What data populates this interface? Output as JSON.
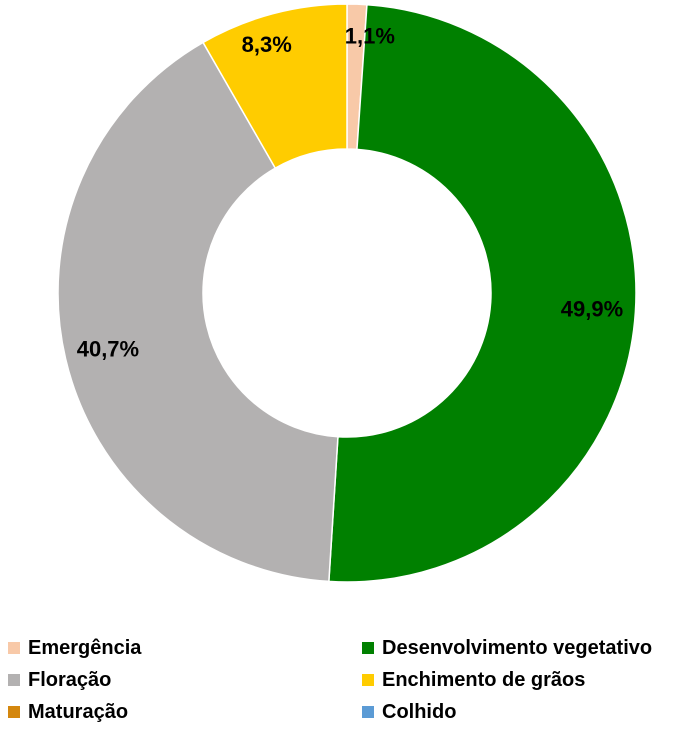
{
  "chart_data": {
    "type": "pie",
    "donut": true,
    "categories": [
      "Emergência",
      "Desenvolvimento vegetativo",
      "Floração",
      "Enchimento de grãos",
      "Maturação",
      "Colhido"
    ],
    "values": [
      1.1,
      49.9,
      40.7,
      8.3,
      0,
      0
    ],
    "data_labels": [
      "1,1%",
      "49,9%",
      "40,7%",
      "8,3%",
      "",
      ""
    ],
    "colors": [
      "#f8c9a8",
      "#008000",
      "#b3b1b1",
      "#ffcc00",
      "#d4870e",
      "#5b9bd5"
    ],
    "legend_position": "bottom",
    "start": "top",
    "direction": "clockwise"
  }
}
